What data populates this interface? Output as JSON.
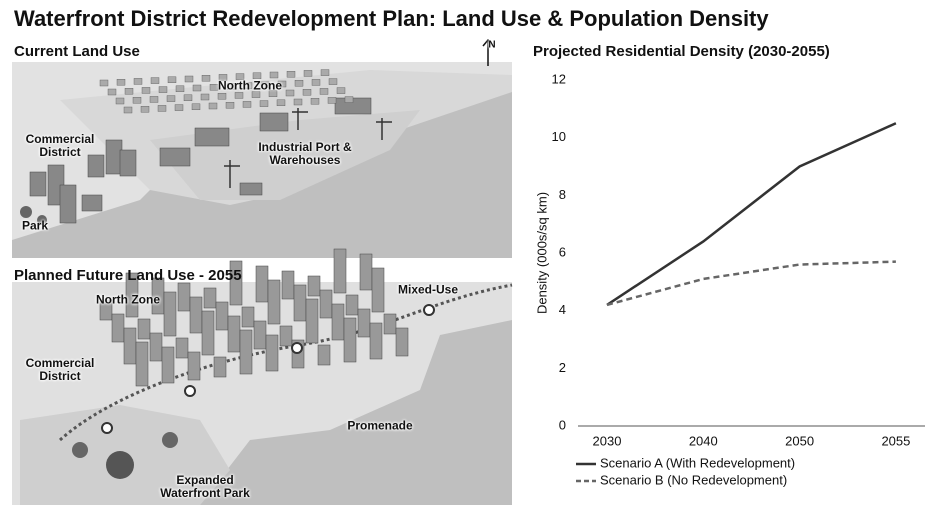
{
  "title": "Waterfront District Redevelopment Plan: Land Use & Population Density",
  "compass": "N",
  "maps": [
    {
      "title": "Current Land Use",
      "labels": [
        "North Zone",
        "Commercial District",
        "Industrial Port & Warehouses",
        "Park"
      ]
    },
    {
      "title": "Planned Future Land Use - 2055",
      "labels": [
        "North Zone",
        "Mixed-Use",
        "Commercial District",
        "Promenade",
        "Expanded Waterfront Park"
      ]
    }
  ],
  "chart_data": {
    "type": "line",
    "title": "Projected Residential Density (2030-2055)",
    "y_label": "Density (000s/sq km)",
    "categories": [
      "2030",
      "2040",
      "2050",
      "2055"
    ],
    "series": [
      {
        "name": "Scenario A (With Redevelopment)",
        "color": "#333333",
        "dashed": false,
        "values": [
          4.2,
          6.4,
          9.0,
          10.5
        ]
      },
      {
        "name": "Scenario B (No Redevelopment)",
        "color": "#666666",
        "dashed": true,
        "values": [
          4.2,
          5.1,
          5.6,
          5.7
        ]
      }
    ],
    "ylim": [
      0,
      12
    ],
    "yticks": [
      0,
      2,
      4,
      6,
      8,
      10,
      12
    ],
    "grid": false,
    "legend": "bottom"
  }
}
